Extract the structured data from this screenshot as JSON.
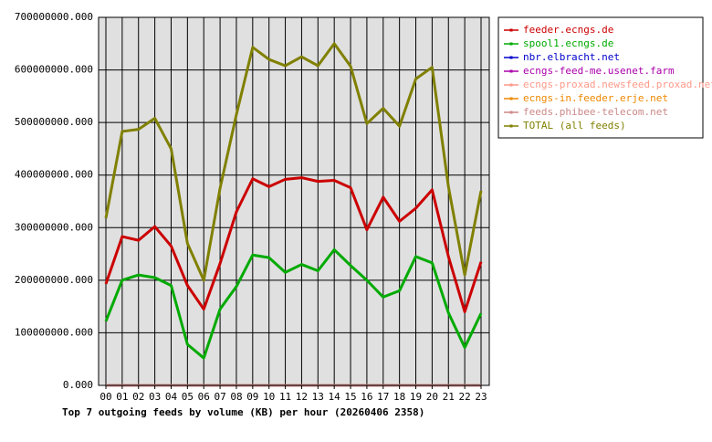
{
  "chart_data": {
    "type": "line",
    "title": "Top 7 outgoing feeds by volume (KB) per hour (20260406 2358)",
    "categories": [
      "00",
      "01",
      "02",
      "03",
      "04",
      "05",
      "06",
      "07",
      "08",
      "09",
      "10",
      "11",
      "12",
      "13",
      "14",
      "15",
      "16",
      "17",
      "18",
      "19",
      "20",
      "21",
      "22",
      "23"
    ],
    "ylim": [
      0,
      700000000
    ],
    "yticks": [
      {
        "value": 0,
        "label": "0.000"
      },
      {
        "value": 100000000,
        "label": "100000000.000"
      },
      {
        "value": 200000000,
        "label": "200000000.000"
      },
      {
        "value": 300000000,
        "label": "300000000.000"
      },
      {
        "value": 400000000,
        "label": "400000000.000"
      },
      {
        "value": 500000000,
        "label": "500000000.000"
      },
      {
        "value": 600000000,
        "label": "600000000.000"
      },
      {
        "value": 700000000,
        "label": "700000000.000"
      }
    ],
    "grid": true,
    "legend": "right",
    "series": [
      {
        "name": "feeder.ecngs.de",
        "color": "#cc0000",
        "values": [
          193000000,
          283000000,
          276000000,
          302000000,
          265000000,
          190000000,
          145000000,
          232000000,
          330000000,
          393000000,
          378000000,
          392000000,
          395000000,
          388000000,
          390000000,
          376000000,
          296000000,
          358000000,
          312000000,
          337000000,
          372000000,
          245000000,
          140000000,
          235000000
        ]
      },
      {
        "name": "spool1.ecngs.de",
        "color": "#00aa00",
        "values": [
          122000000,
          200000000,
          210000000,
          205000000,
          190000000,
          78000000,
          52000000,
          145000000,
          188000000,
          248000000,
          243000000,
          215000000,
          230000000,
          218000000,
          258000000,
          228000000,
          200000000,
          168000000,
          180000000,
          245000000,
          233000000,
          138000000,
          72000000,
          137000000
        ]
      },
      {
        "name": "nbr.elbracht.net",
        "color": "#0000cc",
        "values": [
          0,
          0,
          0,
          0,
          0,
          0,
          0,
          0,
          0,
          0,
          0,
          0,
          0,
          0,
          0,
          0,
          0,
          0,
          0,
          0,
          0,
          0,
          0,
          0
        ]
      },
      {
        "name": "ecngs-feed-me.usenet.farm",
        "color": "#aa00aa",
        "values": [
          0,
          0,
          0,
          0,
          0,
          0,
          0,
          0,
          0,
          0,
          0,
          0,
          0,
          0,
          0,
          0,
          0,
          0,
          0,
          0,
          0,
          0,
          0,
          0
        ]
      },
      {
        "name": "ecngs-proxad.newsfeed.proxad.net",
        "color": "#ff9988",
        "values": [
          0,
          0,
          0,
          0,
          0,
          0,
          0,
          0,
          0,
          0,
          0,
          0,
          0,
          0,
          0,
          0,
          0,
          0,
          0,
          0,
          0,
          0,
          0,
          0
        ]
      },
      {
        "name": "ecngs-in.feeder.erje.net",
        "color": "#ee8800",
        "values": [
          0,
          0,
          0,
          0,
          0,
          0,
          0,
          0,
          0,
          0,
          0,
          0,
          0,
          0,
          0,
          0,
          0,
          0,
          0,
          0,
          0,
          0,
          0,
          0
        ]
      },
      {
        "name": "feeds.phibee-telecom.net",
        "color": "#cc8888",
        "values": [
          0,
          0,
          0,
          0,
          0,
          0,
          0,
          0,
          0,
          0,
          0,
          0,
          0,
          0,
          0,
          0,
          0,
          0,
          0,
          0,
          0,
          0,
          0,
          0
        ]
      },
      {
        "name": "TOTAL (all feeds)",
        "color": "#808000",
        "values": [
          318000000,
          483000000,
          487000000,
          508000000,
          450000000,
          270000000,
          200000000,
          375000000,
          515000000,
          643000000,
          620000000,
          608000000,
          625000000,
          608000000,
          650000000,
          607000000,
          498000000,
          527000000,
          493000000,
          583000000,
          605000000,
          378000000,
          210000000,
          370000000
        ]
      }
    ]
  }
}
